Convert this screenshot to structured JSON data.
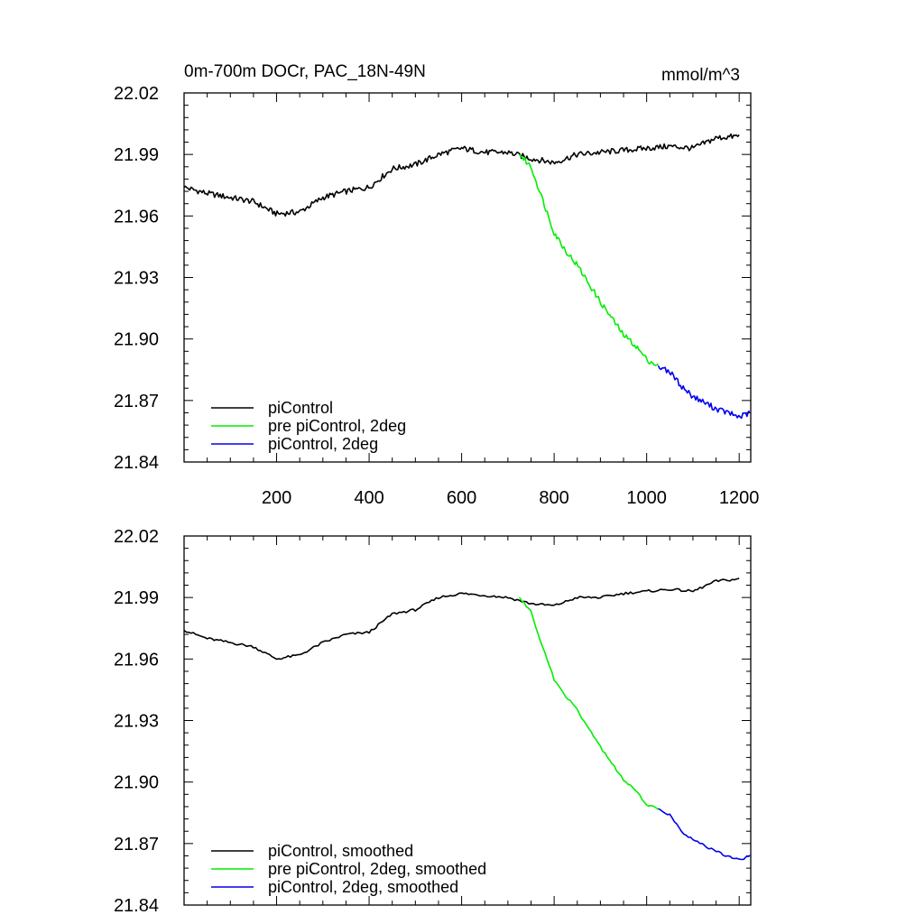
{
  "chart_data": [
    {
      "type": "line",
      "title": "0m-700m DOCr, PAC_18N-49N",
      "units": "mmol/m^3",
      "xlabel": "",
      "ylabel": "",
      "xlim": [
        0,
        1225
      ],
      "ylim": [
        21.84,
        22.02
      ],
      "xticks": [
        200,
        400,
        600,
        800,
        1000,
        1200
      ],
      "xtick_labels": [
        "200",
        "400",
        "600",
        "800",
        "1000",
        "1200"
      ],
      "yticks": [
        21.84,
        21.87,
        21.9,
        21.93,
        21.96,
        21.99,
        22.02
      ],
      "ytick_labels": [
        "21.84",
        "21.87",
        "21.90",
        "21.93",
        "21.96",
        "21.99",
        "22.02"
      ],
      "grid": false,
      "legend_position": "bottom-left",
      "smoothed": false,
      "series": [
        {
          "name": "piControl",
          "color": "#000000",
          "x": [
            0,
            50,
            100,
            150,
            200,
            250,
            300,
            350,
            400,
            450,
            500,
            550,
            600,
            650,
            700,
            750,
            800,
            850,
            900,
            950,
            1000,
            1050,
            1100,
            1150,
            1200
          ],
          "values": [
            21.974,
            21.971,
            21.969,
            21.967,
            21.961,
            21.962,
            21.969,
            21.972,
            21.974,
            21.983,
            21.985,
            21.99,
            21.993,
            21.991,
            21.991,
            21.988,
            21.986,
            21.99,
            21.991,
            21.992,
            21.993,
            21.994,
            21.993,
            21.998,
            21.999
          ]
        },
        {
          "name": "pre piControl, 2deg",
          "color": "#00ee00",
          "x": [
            725,
            750,
            775,
            800,
            825,
            850,
            875,
            900,
            925,
            950,
            975,
            1000,
            1025
          ],
          "values": [
            21.99,
            21.984,
            21.968,
            21.952,
            21.943,
            21.936,
            21.927,
            21.918,
            21.91,
            21.902,
            21.897,
            21.89,
            21.887
          ]
        },
        {
          "name": "piControl, 2deg",
          "color": "#0000ee",
          "x": [
            1025,
            1050,
            1075,
            1100,
            1125,
            1150,
            1175,
            1200,
            1225
          ],
          "values": [
            21.887,
            21.884,
            21.877,
            21.872,
            21.869,
            21.866,
            21.864,
            21.862,
            21.864
          ]
        }
      ]
    },
    {
      "type": "line",
      "title": "",
      "units": "",
      "xlabel": "",
      "ylabel": "",
      "xlim": [
        0,
        1225
      ],
      "ylim": [
        21.84,
        22.02
      ],
      "xticks": [
        200,
        400,
        600,
        800,
        1000,
        1200
      ],
      "xtick_labels": [],
      "yticks": [
        21.84,
        21.87,
        21.9,
        21.93,
        21.96,
        21.99,
        22.02
      ],
      "ytick_labels": [
        "21.84",
        "21.87",
        "21.90",
        "21.93",
        "21.96",
        "21.99",
        "22.02"
      ],
      "grid": false,
      "legend_position": "bottom-left",
      "smoothed": true,
      "series": [
        {
          "name": "piControl, smoothed",
          "color": "#000000",
          "x": [
            0,
            50,
            100,
            150,
            200,
            250,
            300,
            350,
            400,
            450,
            500,
            550,
            600,
            650,
            700,
            750,
            800,
            850,
            900,
            950,
            1000,
            1050,
            1100,
            1150,
            1200
          ],
          "values": [
            21.974,
            21.97,
            21.968,
            21.966,
            21.96,
            21.962,
            21.968,
            21.972,
            21.973,
            21.982,
            21.984,
            21.99,
            21.992,
            21.991,
            21.99,
            21.987,
            21.986,
            21.99,
            21.99,
            21.992,
            21.993,
            21.994,
            21.993,
            21.998,
            21.999
          ]
        },
        {
          "name": "pre piControl, 2deg, smoothed",
          "color": "#00ee00",
          "x": [
            725,
            750,
            775,
            800,
            825,
            850,
            875,
            900,
            925,
            950,
            975,
            1000,
            1025
          ],
          "values": [
            21.99,
            21.983,
            21.966,
            21.95,
            21.942,
            21.935,
            21.926,
            21.917,
            21.909,
            21.901,
            21.896,
            21.889,
            21.887
          ]
        },
        {
          "name": "piControl, 2deg, smoothed",
          "color": "#0000ee",
          "x": [
            1025,
            1050,
            1075,
            1100,
            1125,
            1150,
            1175,
            1200,
            1225
          ],
          "values": [
            21.887,
            21.884,
            21.876,
            21.872,
            21.869,
            21.866,
            21.864,
            21.862,
            21.864
          ]
        }
      ]
    }
  ]
}
